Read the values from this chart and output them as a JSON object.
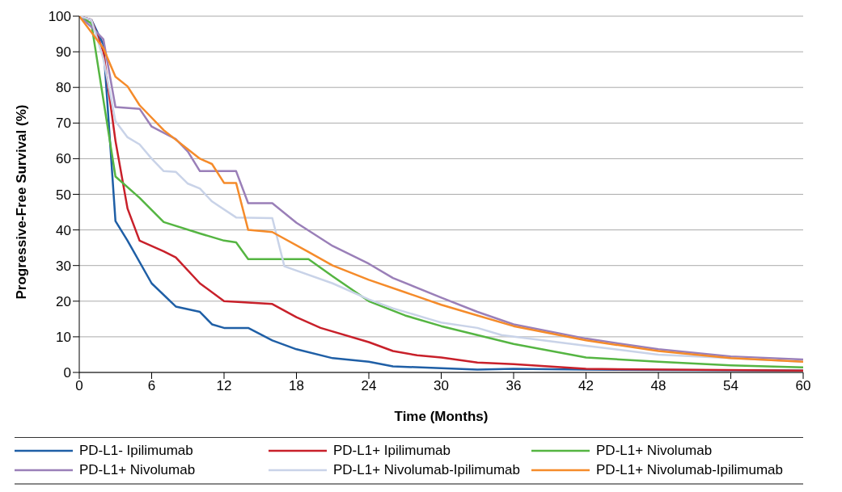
{
  "chart_data": {
    "type": "line",
    "xlabel": "Time (Months)",
    "ylabel": "Progressive-Free Survival (%)",
    "xlim": [
      0,
      60
    ],
    "xticks": [
      0,
      6,
      12,
      18,
      24,
      30,
      36,
      42,
      48,
      54,
      60
    ],
    "ylim": [
      0,
      100
    ],
    "yticks": [
      0,
      10,
      20,
      30,
      40,
      50,
      60,
      70,
      80,
      90,
      100
    ],
    "grid": "y",
    "legend": "bottom",
    "marker": "none",
    "line_style": "solid",
    "series": [
      {
        "name": "PD-L1- Ipilimumab",
        "color": "#1f5fa6",
        "x": [
          0,
          1,
          2,
          3,
          4,
          6,
          8,
          10,
          11,
          12,
          14,
          16,
          18,
          21,
          24,
          26,
          30,
          33,
          36,
          42,
          60
        ],
        "values": [
          100,
          99,
          92,
          42.5,
          37,
          25,
          18.5,
          17,
          13.5,
          12.5,
          12.5,
          9,
          6.5,
          4,
          3,
          1.7,
          1.2,
          0.8,
          1,
          0.8,
          0.5
        ]
      },
      {
        "name": "PD-L1+ Ipilimumab",
        "color": "#c8202a",
        "x": [
          0,
          1,
          2,
          3,
          4,
          5,
          7,
          8,
          10,
          12,
          16,
          18,
          20,
          24,
          26,
          28,
          30,
          33,
          36,
          42,
          60
        ],
        "values": [
          100,
          99,
          90,
          65,
          46,
          37,
          34,
          32.3,
          25,
          20,
          19.2,
          15.5,
          12.5,
          8.5,
          6,
          4.8,
          4.2,
          2.8,
          2.3,
          1,
          0.5
        ]
      },
      {
        "name": "PD-L1+ Nivolumab",
        "color": "#55b542",
        "x": [
          0,
          1,
          3,
          5,
          7,
          10,
          12,
          13,
          14,
          19,
          21,
          24,
          27,
          30,
          33,
          36,
          42,
          48,
          54,
          60
        ],
        "values": [
          100,
          98,
          55,
          49,
          42.2,
          39,
          37,
          36.5,
          31.8,
          31.8,
          27,
          20,
          16,
          13,
          10.5,
          8,
          4.2,
          3,
          2,
          1.4
        ]
      },
      {
        "name": "PD-L1+ Nivolumab",
        "color": "#9a7fb8",
        "x": [
          0,
          1,
          2,
          3,
          5,
          6,
          8,
          9,
          10,
          13,
          14,
          16,
          18,
          21,
          24,
          26,
          30,
          33,
          36,
          42,
          48,
          54,
          60
        ],
        "values": [
          100,
          97,
          93.5,
          74.5,
          74,
          69,
          65.5,
          62,
          56.5,
          56.5,
          47.5,
          47.5,
          42,
          35.5,
          30.5,
          26.5,
          21,
          17,
          13.5,
          9.5,
          6.5,
          4.5,
          3.6
        ]
      },
      {
        "name": "PD-L1+ Nivolumab-Ipilimumab",
        "color": "#c9d3e8",
        "x": [
          0,
          1,
          2,
          3,
          4,
          5,
          6,
          7,
          8,
          9,
          10,
          11,
          13,
          16,
          17,
          21,
          24,
          26,
          29,
          30,
          33,
          35,
          42,
          48,
          54,
          60
        ],
        "values": [
          100,
          99,
          88,
          70.5,
          66,
          64,
          60,
          56.5,
          56.3,
          53,
          51.6,
          48,
          43.5,
          43.3,
          29.8,
          25,
          20.5,
          18,
          15,
          14,
          12.5,
          10.5,
          7.5,
          5,
          4,
          3
        ]
      },
      {
        "name": "PD-L1+ Nivolumab-Ipilimumab",
        "color": "#f58b2a",
        "x": [
          0,
          2,
          3,
          4,
          5,
          7,
          10,
          11,
          12,
          13,
          14,
          16,
          19,
          21,
          24,
          27,
          30,
          33,
          36,
          42,
          48,
          54,
          60
        ],
        "values": [
          100,
          91,
          83,
          80.3,
          75,
          68,
          60,
          58.5,
          53.2,
          53.2,
          40,
          39.4,
          33.8,
          30,
          26,
          22.5,
          19,
          16,
          13,
          9,
          6,
          4,
          3
        ]
      }
    ]
  }
}
